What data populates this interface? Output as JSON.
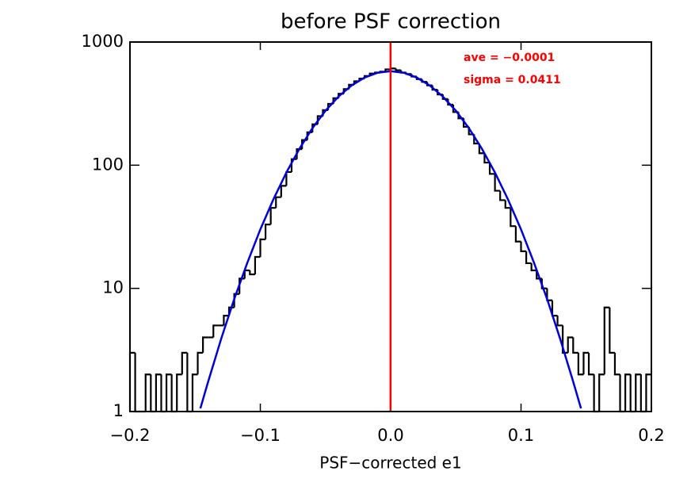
{
  "chart_data": {
    "type": "histogram",
    "title": "before PSF correction",
    "xlabel": "PSF−corrected e1",
    "log_y": true,
    "xlim": [
      -0.2,
      0.2
    ],
    "ylim": [
      1,
      1000
    ],
    "xticks": [
      {
        "value": -0.2,
        "label": "−0.2"
      },
      {
        "value": -0.1,
        "label": "−0.1"
      },
      {
        "value": 0,
        "label": "0.0"
      },
      {
        "value": 0.1,
        "label": "0.1"
      },
      {
        "value": 0.2,
        "label": "0.2"
      }
    ],
    "yticks": [
      1,
      10,
      100,
      1000
    ],
    "bins": [
      -0.2,
      -0.196,
      -0.192,
      -0.188,
      -0.184,
      -0.18,
      -0.176,
      -0.172,
      -0.168,
      -0.164,
      -0.16,
      -0.156,
      -0.152,
      -0.148,
      -0.144,
      -0.14,
      -0.136,
      -0.132,
      -0.128,
      -0.124,
      -0.12,
      -0.116,
      -0.112,
      -0.108,
      -0.104,
      -0.1,
      -0.096,
      -0.092,
      -0.088,
      -0.084,
      -0.08,
      -0.076,
      -0.072,
      -0.068,
      -0.064,
      -0.06,
      -0.056,
      -0.052,
      -0.048,
      -0.044,
      -0.04,
      -0.036,
      -0.032,
      -0.028,
      -0.024,
      -0.02,
      -0.016,
      -0.012,
      -0.008,
      -0.004,
      0,
      0.004,
      0.008,
      0.012,
      0.016,
      0.02,
      0.024,
      0.028,
      0.032,
      0.036,
      0.04,
      0.044,
      0.048,
      0.052,
      0.056,
      0.06,
      0.064,
      0.068,
      0.072,
      0.076,
      0.08,
      0.084,
      0.088,
      0.092,
      0.096,
      0.1,
      0.104,
      0.108,
      0.112,
      0.116,
      0.12,
      0.124,
      0.128,
      0.132,
      0.136,
      0.14,
      0.144,
      0.148,
      0.152,
      0.156,
      0.16,
      0.164,
      0.168,
      0.172,
      0.176,
      0.18,
      0.184,
      0.188,
      0.192,
      0.196,
      0.2
    ],
    "values": [
      3,
      1,
      0,
      2,
      1,
      2,
      0,
      2,
      1,
      2,
      3,
      1,
      2,
      3,
      4,
      4,
      5,
      5,
      6,
      7,
      9,
      12,
      14,
      13,
      18,
      25,
      33,
      45,
      55,
      68,
      88,
      112,
      135,
      160,
      185,
      215,
      250,
      280,
      315,
      350,
      380,
      415,
      450,
      480,
      505,
      530,
      555,
      565,
      575,
      600,
      610,
      590,
      565,
      550,
      525,
      500,
      475,
      445,
      410,
      375,
      345,
      310,
      270,
      240,
      205,
      178,
      150,
      125,
      105,
      85,
      62,
      52,
      45,
      32,
      24,
      20,
      16,
      14,
      12,
      10,
      8,
      6,
      5,
      3,
      4,
      3,
      2,
      3,
      2,
      1,
      2,
      7,
      3,
      2,
      1,
      2,
      1,
      2,
      1,
      2
    ],
    "color": "#000000",
    "series": [
      {
        "color": "#0000dd",
        "x": [
          -0.146,
          -0.14,
          -0.13,
          -0.12,
          -0.11,
          -0.1,
          -0.09,
          -0.08,
          -0.07,
          -0.06,
          -0.05,
          -0.04,
          -0.03,
          -0.02,
          -0.01,
          0,
          0.01,
          0.02,
          0.03,
          0.04,
          0.05,
          0.06,
          0.07,
          0.08,
          0.09,
          0.1,
          0.11,
          0.12,
          0.13,
          0.14,
          0.146
        ],
        "values": [
          1.06,
          1.75,
          3.9,
          8.2,
          16.1,
          30.1,
          52.7,
          87.2,
          136,
          200,
          277,
          361,
          444,
          515,
          563,
          580,
          563,
          515,
          444,
          361,
          277,
          200,
          136,
          87.2,
          52.7,
          30.1,
          16.1,
          8.2,
          3.9,
          1.75,
          1.06
        ]
      }
    ],
    "vline": {
      "x": -0.0001,
      "color": "#ff0000"
    },
    "annotations": [
      {
        "text": "ave =  −0.0001",
        "color": "#ff0000"
      },
      {
        "text": "sigma =   0.0411",
        "color": "#ff0000"
      }
    ]
  }
}
